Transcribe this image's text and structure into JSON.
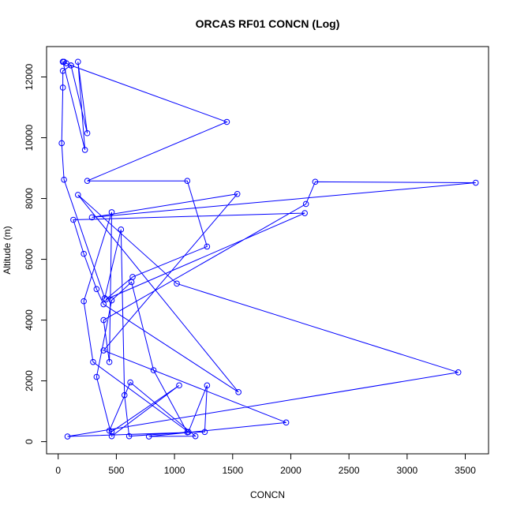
{
  "chart_data": {
    "type": "line",
    "title": "ORCAS RF01 CONCN (Log)",
    "xlabel": "CONCN",
    "ylabel": "Altitude (m)",
    "xlim": [
      -100,
      3700
    ],
    "ylim": [
      -400,
      13000
    ],
    "x_ticks": [
      0,
      500,
      1000,
      1500,
      2000,
      2500,
      3000,
      3500
    ],
    "y_ticks": [
      0,
      2000,
      4000,
      6000,
      8000,
      10000,
      12000
    ],
    "grid": false,
    "legend": "none",
    "colors": {
      "series": "#0000ff",
      "axes": "#000000"
    },
    "series": [
      {
        "points": [
          [
            40,
            12500
          ],
          [
            50,
            12500
          ],
          [
            70,
            12450
          ],
          [
            110,
            12380
          ],
          [
            1450,
            10520
          ],
          [
            250,
            8580
          ],
          [
            1110,
            8580
          ],
          [
            1280,
            6420
          ],
          [
            640,
            5420
          ],
          [
            410,
            4680
          ],
          [
            2120,
            7520
          ],
          [
            130,
            7300
          ],
          [
            220,
            6180
          ],
          [
            330,
            5020
          ],
          [
            390,
            4520
          ],
          [
            1550,
            1630
          ],
          [
            170,
            8120
          ],
          [
            1020,
            5200
          ],
          [
            3440,
            2280
          ],
          [
            80,
            170
          ],
          [
            1260,
            320
          ],
          [
            1280,
            1850
          ],
          [
            1120,
            320
          ],
          [
            300,
            2620
          ],
          [
            220,
            4620
          ],
          [
            460,
            7550
          ],
          [
            440,
            2620
          ],
          [
            390,
            4000
          ],
          [
            2130,
            7820
          ],
          [
            2210,
            8550
          ],
          [
            3590,
            8520
          ],
          [
            290,
            7380
          ],
          [
            1540,
            8150
          ],
          [
            390,
            3000
          ],
          [
            1960,
            630
          ],
          [
            780,
            170
          ],
          [
            1180,
            180
          ],
          [
            620,
            1950
          ],
          [
            440,
            360
          ],
          [
            460,
            330
          ],
          [
            1040,
            1850
          ],
          [
            460,
            180
          ],
          [
            330,
            2130
          ],
          [
            460,
            4650
          ],
          [
            630,
            5250
          ],
          [
            820,
            2350
          ],
          [
            1110,
            310
          ],
          [
            610,
            180
          ],
          [
            570,
            1530
          ],
          [
            540,
            6980
          ],
          [
            400,
            4720
          ],
          [
            50,
            8620
          ],
          [
            30,
            9820
          ],
          [
            40,
            11650
          ],
          [
            40,
            12200
          ],
          [
            110,
            12380
          ],
          [
            250,
            10150
          ],
          [
            170,
            12500
          ],
          [
            230,
            9600
          ],
          [
            40,
            12500
          ]
        ]
      }
    ]
  }
}
